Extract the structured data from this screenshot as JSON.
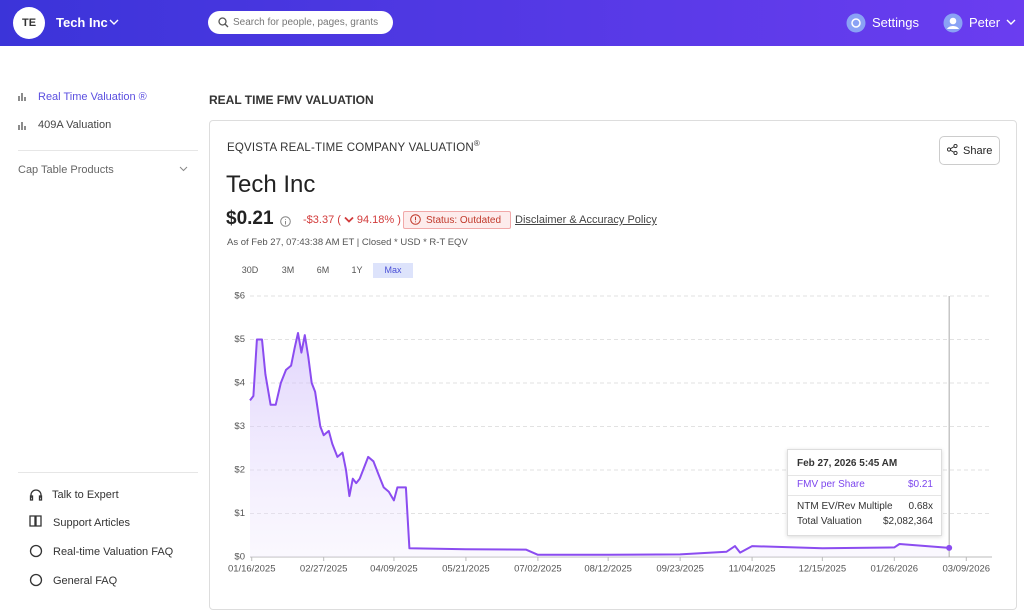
{
  "header": {
    "initials": "TE",
    "company": "Tech Inc",
    "search_placeholder": "Search for people, pages, grants",
    "settings": "Settings",
    "user": "Peter"
  },
  "sidebar": {
    "items": [
      "Real Time Valuation ®",
      "409A Valuation",
      "Cap Table Products"
    ],
    "footer": [
      "Talk to Expert",
      "Support Articles",
      "Real-time Valuation FAQ",
      "General FAQ"
    ]
  },
  "page_title": "REAL TIME FMV VALUATION",
  "card": {
    "heading": "EQVISTA REAL-TIME COMPANY VALUATION",
    "heading_mark": "®",
    "share": "Share",
    "company": "Tech Inc",
    "price": "$0.21",
    "change": "-$3.37",
    "change_pct": {
      "open": "(",
      "value": "94.18%",
      "close": ")"
    },
    "status": "Status: Outdated",
    "disclaimer": "Disclaimer & Accuracy Policy",
    "as_of": "As of Feb 27, 07:43:38 AM ET | Closed * USD * R-T EQV",
    "ranges": [
      "30D",
      "3M",
      "6M",
      "1Y",
      "Max"
    ],
    "active_range": 4
  },
  "chart_data": {
    "type": "line",
    "x": [
      "2025-01-15",
      "2025-01-17",
      "2025-01-19",
      "2025-01-22",
      "2025-01-24",
      "2025-01-27",
      "2025-01-30",
      "2025-02-02",
      "2025-02-05",
      "2025-02-08",
      "2025-02-10",
      "2025-02-12",
      "2025-02-14",
      "2025-02-16",
      "2025-02-18",
      "2025-02-20",
      "2025-02-22",
      "2025-02-25",
      "2025-02-27",
      "2025-03-02",
      "2025-03-04",
      "2025-03-07",
      "2025-03-10",
      "2025-03-12",
      "2025-03-14",
      "2025-03-16",
      "2025-03-18",
      "2025-03-20",
      "2025-03-23",
      "2025-03-25",
      "2025-03-28",
      "2025-03-31",
      "2025-04-03",
      "2025-04-06",
      "2025-04-09",
      "2025-04-11",
      "2025-04-16",
      "2025-04-18",
      "2025-05-21",
      "2025-06-25",
      "2025-07-02",
      "2025-08-12",
      "2025-09-23",
      "2025-10-20",
      "2025-10-25",
      "2025-10-28",
      "2025-11-04",
      "2025-12-15",
      "2026-01-26",
      "2026-01-29",
      "2026-02-27"
    ],
    "series": [
      {
        "name": "FMV per Share",
        "color": "#8b4cf0",
        "values": [
          3.6,
          3.7,
          5.0,
          5.0,
          4.2,
          3.5,
          3.5,
          4.0,
          4.3,
          4.4,
          4.8,
          5.15,
          4.7,
          5.1,
          4.6,
          4.0,
          3.8,
          3.0,
          2.8,
          2.9,
          2.6,
          2.3,
          2.4,
          2.0,
          1.4,
          1.8,
          1.7,
          1.8,
          2.1,
          2.3,
          2.2,
          1.9,
          1.6,
          1.5,
          1.3,
          1.6,
          1.6,
          0.2,
          0.18,
          0.17,
          0.05,
          0.05,
          0.06,
          0.12,
          0.25,
          0.1,
          0.25,
          0.2,
          0.22,
          0.3,
          0.21
        ]
      }
    ],
    "xlim": [
      "2025-01-15",
      "2026-03-24"
    ],
    "ylim": [
      0,
      6
    ],
    "xticks": [
      {
        "value": "2025-01-16",
        "label": "01/16/2025"
      },
      {
        "value": "2025-02-27",
        "label": "02/27/2025"
      },
      {
        "value": "2025-04-09",
        "label": "04/09/2025"
      },
      {
        "value": "2025-05-21",
        "label": "05/21/2025"
      },
      {
        "value": "2025-07-02",
        "label": "07/02/2025"
      },
      {
        "value": "2025-08-12",
        "label": "08/12/2025"
      },
      {
        "value": "2025-09-23",
        "label": "09/23/2025"
      },
      {
        "value": "2025-11-04",
        "label": "11/04/2025"
      },
      {
        "value": "2025-12-15",
        "label": "12/15/2025"
      },
      {
        "value": "2026-01-26",
        "label": "01/26/2026"
      },
      {
        "value": "2026-03-09",
        "label": "03/09/2026"
      }
    ],
    "yticks": [
      {
        "value": 0,
        "label": "$0"
      },
      {
        "value": 1,
        "label": "$1"
      },
      {
        "value": 2,
        "label": "$2"
      },
      {
        "value": 3,
        "label": "$3"
      },
      {
        "value": 4,
        "label": "$4"
      },
      {
        "value": 5,
        "label": "$5"
      },
      {
        "value": 6,
        "label": "$6"
      }
    ],
    "grid": true,
    "tooltip": {
      "title": "Feb 27, 2026 5:45 AM",
      "fmv": "$0.21",
      "rows": [
        {
          "label": "NTM EV/Rev Multiple",
          "value": "0.68x"
        },
        {
          "label": "Total Valuation",
          "value": "$2,082,364"
        }
      ]
    }
  }
}
